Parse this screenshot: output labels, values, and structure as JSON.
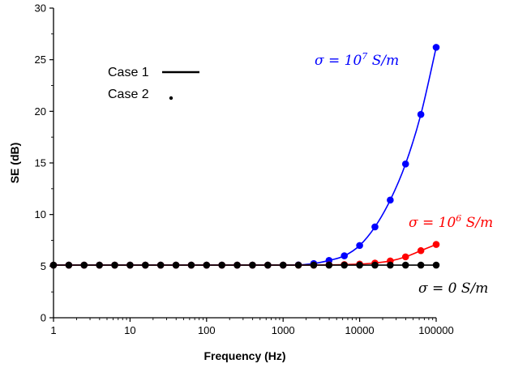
{
  "chart_data": {
    "type": "line",
    "xlabel": "Frequency (Hz)",
    "ylabel": "SE (dB)",
    "x_scale": "log",
    "xlim": [
      1,
      100000
    ],
    "ylim": [
      0,
      30
    ],
    "x_ticks": [
      "1",
      "10",
      "100",
      "1000",
      "10000",
      "100000"
    ],
    "y_ticks": [
      "0",
      "5",
      "10",
      "15",
      "20",
      "25",
      "30"
    ],
    "grid": false,
    "legend": {
      "placement": "top-left",
      "entries": [
        {
          "label": "Case 1",
          "marker": "line"
        },
        {
          "label": "Case 2",
          "marker": "dot"
        }
      ]
    },
    "colors": {
      "sigma0": "#000000",
      "sigma1e6": "#ff0000",
      "sigma1e7": "#0000ff"
    },
    "x": [
      1,
      1.585,
      2.512,
      3.981,
      6.31,
      10,
      15.85,
      25.12,
      39.81,
      63.1,
      100,
      158.5,
      251.2,
      398.1,
      631,
      1000,
      1585,
      2512,
      3981,
      6310,
      10000,
      15850,
      25120,
      39810,
      63100,
      100000
    ],
    "series": [
      {
        "key": "sigma0",
        "annotation": {
          "prefix": "σ = 0 ",
          "exp": "",
          "unit": "S/m"
        },
        "values": [
          5.1,
          5.1,
          5.1,
          5.1,
          5.1,
          5.1,
          5.1,
          5.1,
          5.1,
          5.1,
          5.1,
          5.1,
          5.1,
          5.1,
          5.1,
          5.1,
          5.1,
          5.1,
          5.1,
          5.1,
          5.1,
          5.1,
          5.1,
          5.1,
          5.1,
          5.1
        ]
      },
      {
        "key": "sigma1e6",
        "annotation": {
          "prefix": "σ = 10",
          "exp": "6",
          "unit": " S/m"
        },
        "values": [
          5.1,
          5.1,
          5.1,
          5.1,
          5.1,
          5.1,
          5.1,
          5.1,
          5.1,
          5.1,
          5.1,
          5.1,
          5.1,
          5.1,
          5.1,
          5.1,
          5.1,
          5.1,
          5.12,
          5.15,
          5.2,
          5.3,
          5.5,
          5.9,
          6.5,
          7.1
        ]
      },
      {
        "key": "sigma1e7",
        "annotation": {
          "prefix": "σ = 10",
          "exp": "7",
          "unit": " S/m"
        },
        "values": [
          5.1,
          5.1,
          5.1,
          5.1,
          5.1,
          5.1,
          5.1,
          5.1,
          5.1,
          5.1,
          5.1,
          5.1,
          5.1,
          5.1,
          5.1,
          5.1,
          5.12,
          5.25,
          5.55,
          6.0,
          7.0,
          8.8,
          11.4,
          14.9,
          19.7,
          26.2
        ]
      }
    ]
  }
}
